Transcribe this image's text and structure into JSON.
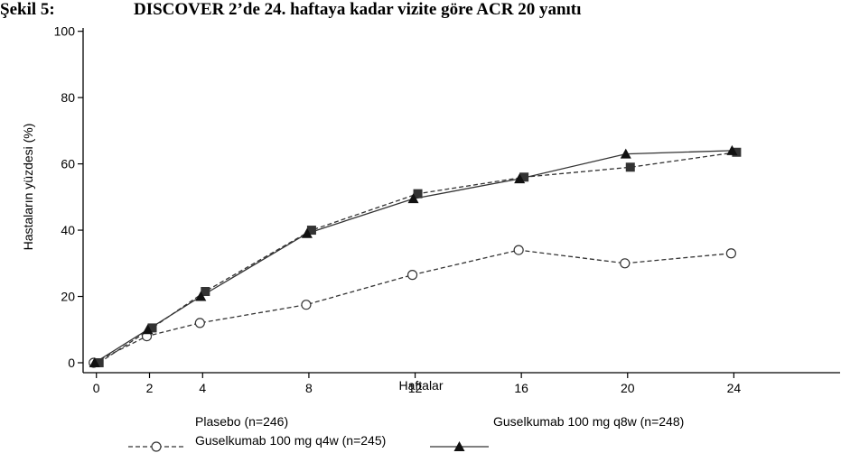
{
  "figure": {
    "label": "Şekil 5:",
    "title": "DISCOVER 2’de 24. haftaya kadar vizite göre ACR 20 yanıtı"
  },
  "chart_data": {
    "type": "line",
    "xlabel": "Haftalar",
    "ylabel": "Hastaların yüzdesi (%)",
    "xlim": [
      -0.5,
      28
    ],
    "ylim": [
      -3,
      101
    ],
    "xticks": [
      0,
      2,
      4,
      8,
      12,
      16,
      20,
      24
    ],
    "yticks": [
      0,
      20,
      40,
      60,
      80,
      100
    ],
    "grid": false,
    "legend_position": "bottom",
    "series": [
      {
        "name": "Plasebo (n=246)",
        "style": "dashed",
        "marker": "circle-open",
        "color": "#333333",
        "x": [
          0,
          2,
          4,
          8,
          12,
          16,
          20,
          24
        ],
        "y": [
          0,
          8,
          12,
          17.5,
          26.5,
          34,
          30,
          33
        ]
      },
      {
        "name": "Guselkumab 100 mg q4w (n=245)",
        "style": "dashed",
        "marker": "square-filled",
        "color": "#333333",
        "x": [
          0,
          2,
          4,
          8,
          12,
          16,
          20,
          24
        ],
        "y": [
          0,
          10.5,
          21.5,
          40,
          51,
          56,
          59,
          63.5
        ]
      },
      {
        "name": "Guselkumab 100 mg q8w (n=248)",
        "style": "solid",
        "marker": "triangle-filled",
        "color": "#333333",
        "x": [
          0,
          2,
          4,
          8,
          12,
          16,
          20,
          24
        ],
        "y": [
          0,
          10,
          20,
          39,
          49.5,
          55.5,
          63,
          64
        ]
      }
    ]
  }
}
